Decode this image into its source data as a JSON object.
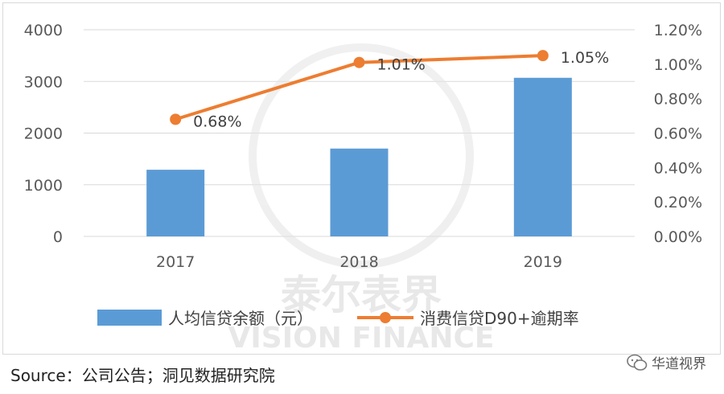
{
  "chart_data": {
    "type": "bar",
    "categories": [
      "2017",
      "2018",
      "2019"
    ],
    "series": [
      {
        "name": "人均信贷余额（元）",
        "kind": "bar",
        "axis": "left",
        "values": [
          1290,
          1700,
          3070
        ],
        "color": "#5b9bd5"
      },
      {
        "name": "消费信贷D90+逾期率",
        "kind": "line",
        "axis": "right",
        "values": [
          0.68,
          1.01,
          1.05
        ],
        "labels": [
          "0.68%",
          "1.01%",
          "1.05%"
        ],
        "color": "#ed7d31"
      }
    ],
    "left_axis": {
      "ylim": [
        0,
        4000
      ],
      "ticks": [
        "0",
        "1000",
        "2000",
        "3000",
        "4000"
      ]
    },
    "right_axis": {
      "ylim": [
        0,
        1.2
      ],
      "ticks": [
        "0.00%",
        "0.20%",
        "0.40%",
        "0.60%",
        "0.80%",
        "1.00%",
        "1.20%"
      ]
    },
    "grid": true,
    "legend": "bottom"
  },
  "watermark": {
    "cn": "泰尔表界",
    "en": "VISION FINANCE"
  },
  "source": "Source：公司公告；洞见数据研究院",
  "brand": {
    "text": "华道视界",
    "icon": "wechat-icon"
  }
}
